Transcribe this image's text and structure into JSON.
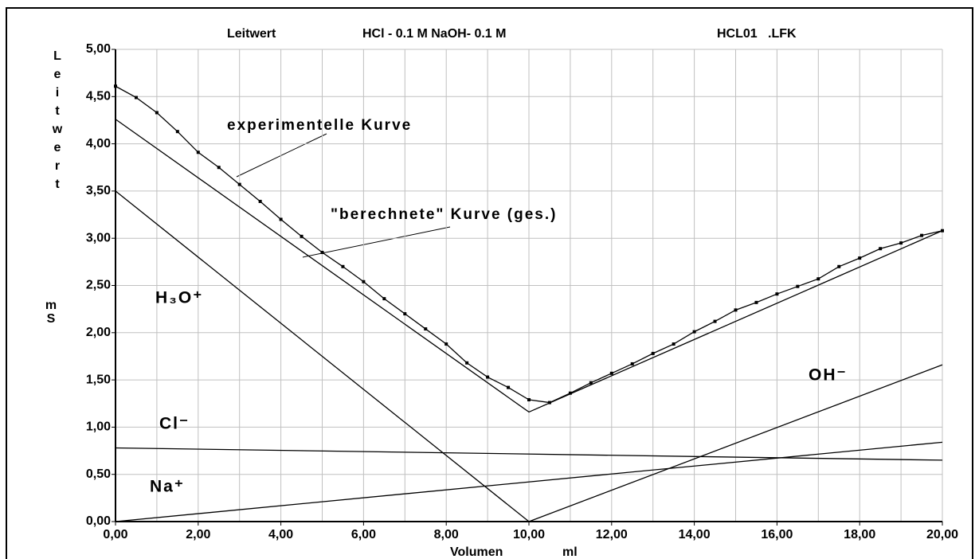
{
  "chart_data": {
    "type": "line",
    "title": "Leitwert",
    "subtitle": "HCl - 0.1 M NaOH- 0.1 M",
    "file": "HCL01   .LFK",
    "ylabel": "Leitwert",
    "yunit": "mS",
    "xlabel": "Volumen",
    "xunit": "ml",
    "xlim": [
      0,
      20
    ],
    "ylim": [
      0,
      5
    ],
    "xticks": [
      {
        "value": 0,
        "label": "0,00"
      },
      {
        "value": 2,
        "label": "2,00"
      },
      {
        "value": 4,
        "label": "4,00"
      },
      {
        "value": 6,
        "label": "6,00"
      },
      {
        "value": 8,
        "label": "8,00"
      },
      {
        "value": 10,
        "label": "10,00"
      },
      {
        "value": 12,
        "label": "12,00"
      },
      {
        "value": 14,
        "label": "14,00"
      },
      {
        "value": 16,
        "label": "16,00"
      },
      {
        "value": 18,
        "label": "18,00"
      },
      {
        "value": 20,
        "label": "20,00"
      }
    ],
    "xminor_ticks": [
      1,
      3,
      5,
      7,
      9,
      11,
      13,
      15,
      17,
      19
    ],
    "yticks": [
      {
        "value": 0,
        "label": "0,00"
      },
      {
        "value": 0.5,
        "label": "0,50"
      },
      {
        "value": 1,
        "label": "1,00"
      },
      {
        "value": 1.5,
        "label": "1,50"
      },
      {
        "value": 2,
        "label": "2,00"
      },
      {
        "value": 2.5,
        "label": "2,50"
      },
      {
        "value": 3,
        "label": "3,00"
      },
      {
        "value": 3.5,
        "label": "3,50"
      },
      {
        "value": 4,
        "label": "4,00"
      },
      {
        "value": 4.5,
        "label": "4,50"
      },
      {
        "value": 5,
        "label": "5,00"
      }
    ],
    "grid": true,
    "series": [
      {
        "name": "experimentelle Kurve",
        "color": "#000000",
        "markers": true,
        "x": [
          0,
          0.5,
          1,
          1.5,
          2,
          2.5,
          3,
          3.5,
          4,
          4.5,
          5,
          5.5,
          6,
          6.5,
          7,
          7.5,
          8,
          8.5,
          9,
          9.5,
          10,
          10.5,
          11,
          11.5,
          12,
          12.5,
          13,
          13.5,
          14,
          14.5,
          15,
          15.5,
          16,
          16.5,
          17,
          17.5,
          18,
          18.5,
          19,
          19.5,
          20
        ],
        "values": [
          4.61,
          4.49,
          4.33,
          4.13,
          3.91,
          3.75,
          3.57,
          3.39,
          3.2,
          3.02,
          2.85,
          2.7,
          2.54,
          2.36,
          2.2,
          2.04,
          1.88,
          1.68,
          1.53,
          1.42,
          1.29,
          1.26,
          1.36,
          1.47,
          1.57,
          1.67,
          1.78,
          1.88,
          2.01,
          2.12,
          2.24,
          2.32,
          2.41,
          2.49,
          2.57,
          2.7,
          2.79,
          2.89,
          2.95,
          3.03,
          3.08
        ]
      },
      {
        "name": "\"berechnete\" Kurve (ges.)",
        "color": "#000000",
        "x": [
          0,
          10,
          20
        ],
        "values": [
          4.26,
          1.16,
          3.08
        ]
      },
      {
        "name": "H₃O⁺",
        "color": "#000000",
        "x": [
          0,
          10
        ],
        "values": [
          3.5,
          0
        ]
      },
      {
        "name": "OH⁻",
        "color": "#000000",
        "x": [
          10,
          20
        ],
        "values": [
          0,
          1.66
        ]
      },
      {
        "name": "Cl⁻",
        "color": "#000000",
        "x": [
          0,
          20
        ],
        "values": [
          0.78,
          0.65
        ]
      },
      {
        "name": "Na⁺",
        "color": "#000000",
        "x": [
          0,
          20
        ],
        "values": [
          0,
          0.84
        ]
      }
    ]
  }
}
